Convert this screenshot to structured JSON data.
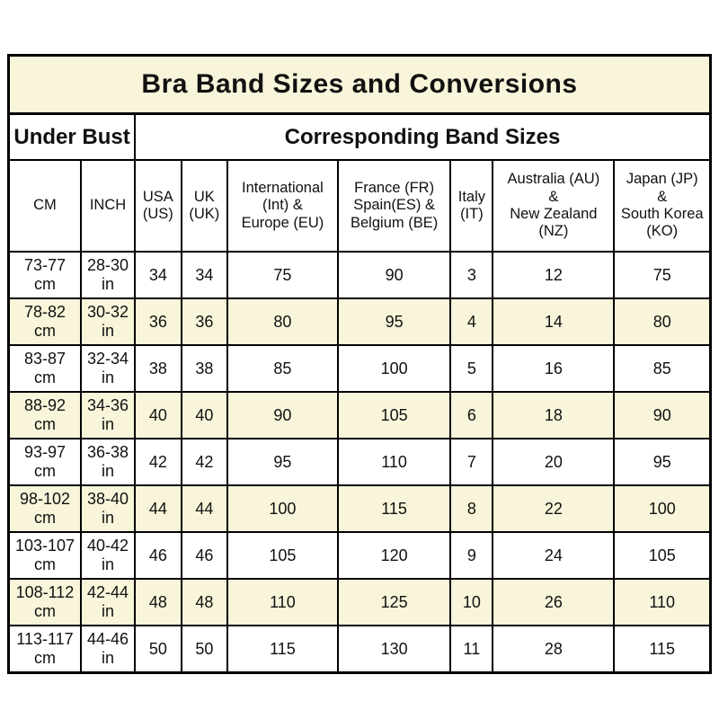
{
  "title": "Bra Band Sizes and Conversions",
  "header": {
    "under_bust": "Under Bust",
    "band_sizes": "Corresponding Band Sizes"
  },
  "columns": [
    {
      "id": "cm",
      "label": "CM"
    },
    {
      "id": "inch",
      "label": "INCH"
    },
    {
      "id": "us",
      "label": "USA\n(US)"
    },
    {
      "id": "uk",
      "label": "UK\n(UK)"
    },
    {
      "id": "int-eu",
      "label": "International\n(Int) &\nEurope (EU)"
    },
    {
      "id": "fr-es-be",
      "label": "France (FR)\nSpain(ES) &\nBelgium (BE)"
    },
    {
      "id": "it",
      "label": "Italy\n(IT)"
    },
    {
      "id": "au-nz",
      "label": "Australia (AU)\n&\nNew Zealand\n(NZ)"
    },
    {
      "id": "jp-ko",
      "label": "Japan (JP)\n&\nSouth Korea\n(KO)"
    }
  ],
  "rows": [
    [
      "73-77\ncm",
      "28-30\nin",
      "34",
      "34",
      "75",
      "90",
      "3",
      "12",
      "75"
    ],
    [
      "78-82\ncm",
      "30-32\nin",
      "36",
      "36",
      "80",
      "95",
      "4",
      "14",
      "80"
    ],
    [
      "83-87\ncm",
      "32-34\nin",
      "38",
      "38",
      "85",
      "100",
      "5",
      "16",
      "85"
    ],
    [
      "88-92\ncm",
      "34-36\nin",
      "40",
      "40",
      "90",
      "105",
      "6",
      "18",
      "90"
    ],
    [
      "93-97\ncm",
      "36-38\nin",
      "42",
      "42",
      "95",
      "110",
      "7",
      "20",
      "95"
    ],
    [
      "98-102\ncm",
      "38-40\nin",
      "44",
      "44",
      "100",
      "115",
      "8",
      "22",
      "100"
    ],
    [
      "103-107\ncm",
      "40-42\nin",
      "46",
      "46",
      "105",
      "120",
      "9",
      "24",
      "105"
    ],
    [
      "108-112\ncm",
      "42-44\nin",
      "48",
      "48",
      "110",
      "125",
      "10",
      "26",
      "110"
    ],
    [
      "113-117\ncm",
      "44-46\nin",
      "50",
      "50",
      "115",
      "130",
      "11",
      "28",
      "115"
    ]
  ],
  "colors": {
    "cream_accent": "#f8f5da",
    "border": "#000000",
    "text": "#111111",
    "background": "#ffffff"
  },
  "chart_data": {
    "type": "table",
    "title": "Bra Band Sizes and Conversions",
    "column_groups": [
      {
        "label": "Under Bust",
        "span": 2
      },
      {
        "label": "Corresponding Band Sizes",
        "span": 7
      }
    ],
    "columns": [
      "CM",
      "INCH",
      "USA (US)",
      "UK (UK)",
      "International (Int) & Europe (EU)",
      "France (FR) Spain(ES) & Belgium (BE)",
      "Italy (IT)",
      "Australia (AU) & New Zealand (NZ)",
      "Japan (JP) & South Korea (KO)"
    ],
    "rows": [
      [
        "73-77 cm",
        "28-30 in",
        34,
        34,
        75,
        90,
        3,
        12,
        75
      ],
      [
        "78-82 cm",
        "30-32 in",
        36,
        36,
        80,
        95,
        4,
        14,
        80
      ],
      [
        "83-87 cm",
        "32-34 in",
        38,
        38,
        85,
        100,
        5,
        16,
        85
      ],
      [
        "88-92 cm",
        "34-36 in",
        40,
        40,
        90,
        105,
        6,
        18,
        90
      ],
      [
        "93-97 cm",
        "36-38 in",
        42,
        42,
        95,
        110,
        7,
        20,
        95
      ],
      [
        "98-102 cm",
        "38-40 in",
        44,
        44,
        100,
        115,
        8,
        22,
        100
      ],
      [
        "103-107 cm",
        "40-42 in",
        46,
        46,
        105,
        120,
        9,
        24,
        105
      ],
      [
        "108-112 cm",
        "42-44 in",
        48,
        48,
        110,
        125,
        10,
        26,
        110
      ],
      [
        "113-117 cm",
        "44-46 in",
        50,
        50,
        115,
        130,
        11,
        28,
        115
      ]
    ],
    "layout": {
      "striped_rows": true,
      "stripe_color": "#f8f5da",
      "grid": true
    }
  }
}
